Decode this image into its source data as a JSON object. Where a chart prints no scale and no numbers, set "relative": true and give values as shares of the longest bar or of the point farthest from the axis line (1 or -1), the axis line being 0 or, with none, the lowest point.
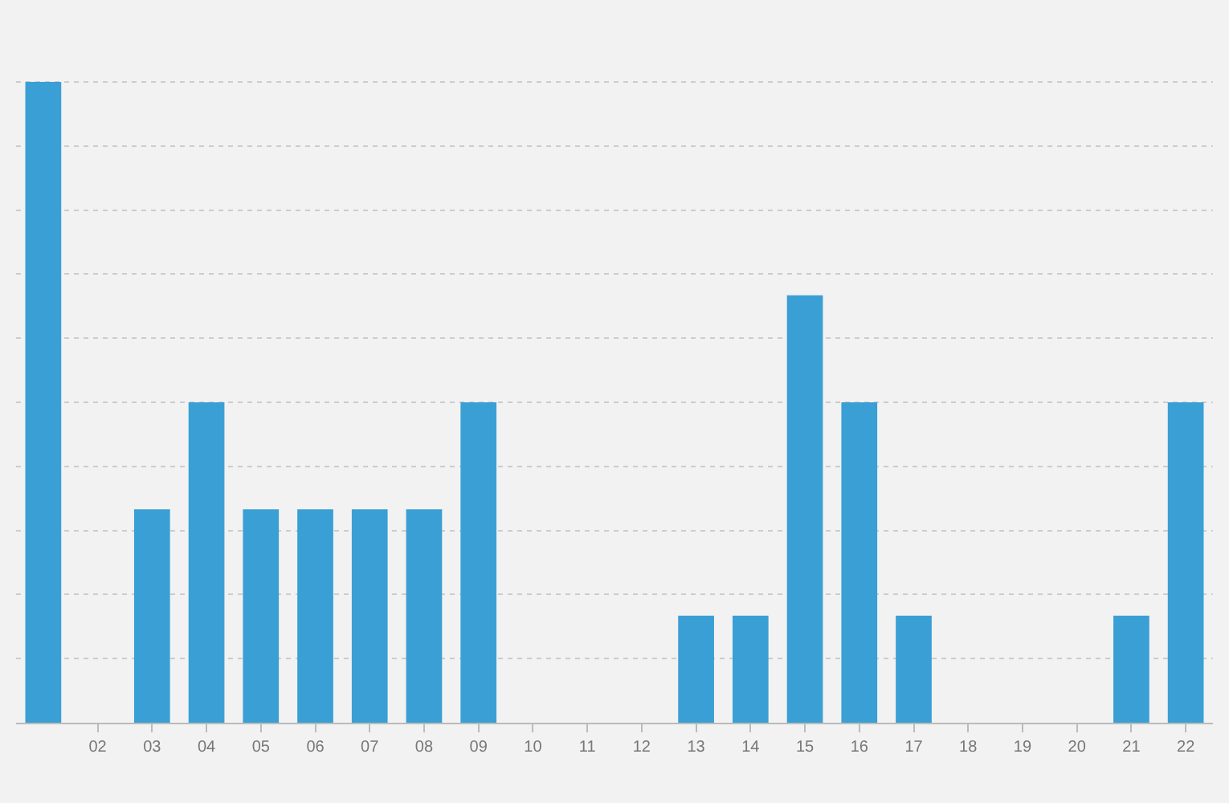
{
  "chart_data": {
    "type": "bar",
    "relative": true,
    "color": "#3a9fd5",
    "grid": "y",
    "categories": [
      null,
      "02",
      "03",
      "04",
      "05",
      "06",
      "07",
      "08",
      "09",
      "10",
      "11",
      "12",
      "13",
      "14",
      "15",
      "16",
      "17",
      "18",
      "19",
      "20",
      "21",
      "22"
    ],
    "values": [
      1,
      0,
      0.333,
      0.5,
      0.333,
      0.333,
      0.333,
      0.333,
      0.5,
      0,
      0,
      0,
      0.167,
      0.167,
      0.667,
      0.5,
      0.167,
      0,
      0,
      0,
      0.167,
      0.5
    ]
  }
}
